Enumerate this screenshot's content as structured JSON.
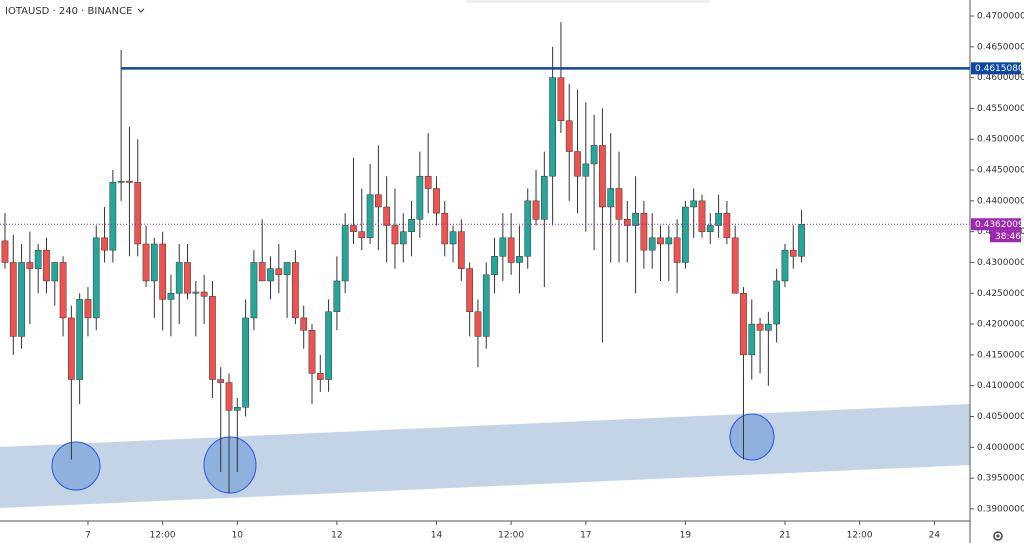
{
  "chart_data": {
    "type": "candlestick",
    "title": "IOTAUSD · 240 · BINANCE",
    "up_color": "#26a69a",
    "down_color": "#ef5350",
    "ylim": [
      0.3882,
      0.4726
    ],
    "yticks": [
      {
        "value": 0.39,
        "label": "0.39000000"
      },
      {
        "value": 0.395,
        "label": "0.39500000"
      },
      {
        "value": 0.4,
        "label": "0.40000000"
      },
      {
        "value": 0.405,
        "label": "0.40500000"
      },
      {
        "value": 0.41,
        "label": "0.41000000"
      },
      {
        "value": 0.415,
        "label": "0.41500000"
      },
      {
        "value": 0.42,
        "label": "0.42000000"
      },
      {
        "value": 0.425,
        "label": "0.42500000"
      },
      {
        "value": 0.43,
        "label": "0.43000000"
      },
      {
        "value": 0.435,
        "label": "0.43500000"
      },
      {
        "value": 0.44,
        "label": "0.44000000"
      },
      {
        "value": 0.445,
        "label": "0.44500000"
      },
      {
        "value": 0.45,
        "label": "0.45000000"
      },
      {
        "value": 0.455,
        "label": "0.45500000"
      },
      {
        "value": 0.46,
        "label": "0.46000000"
      },
      {
        "value": 0.465,
        "label": "0.46500000"
      },
      {
        "value": 0.47,
        "label": "0.47000000"
      }
    ],
    "xlim": [
      -0.6,
      116.3
    ],
    "xticks": [
      {
        "value": 10,
        "label": "7"
      },
      {
        "value": 19,
        "label": "12:00"
      },
      {
        "value": 28,
        "label": "10"
      },
      {
        "value": 40,
        "label": "12"
      },
      {
        "value": 52,
        "label": "14"
      },
      {
        "value": 61,
        "label": "12:00"
      },
      {
        "value": 70,
        "label": "17"
      },
      {
        "value": 82,
        "label": "19"
      },
      {
        "value": 94,
        "label": "21"
      },
      {
        "value": 103,
        "label": "12:00"
      },
      {
        "value": 112,
        "label": "24"
      }
    ],
    "hlines": [
      {
        "value": 0.46150808,
        "color": "#0d47a1"
      },
      {
        "value": 0.43620093,
        "color": "#9c27b0",
        "countdown": "38:46"
      }
    ],
    "candles": [
      [
        0.4335,
        0.438,
        0.429,
        0.43
      ],
      [
        0.43,
        0.4345,
        0.415,
        0.418
      ],
      [
        0.418,
        0.433,
        0.416,
        0.43
      ],
      [
        0.43,
        0.435,
        0.42,
        0.429
      ],
      [
        0.429,
        0.433,
        0.425,
        0.432
      ],
      [
        0.432,
        0.434,
        0.425,
        0.427
      ],
      [
        0.427,
        0.43,
        0.423,
        0.43
      ],
      [
        0.43,
        0.431,
        0.418,
        0.421
      ],
      [
        0.421,
        0.423,
        0.398,
        0.411
      ],
      [
        0.411,
        0.425,
        0.407,
        0.424
      ],
      [
        0.424,
        0.426,
        0.418,
        0.421
      ],
      [
        0.421,
        0.436,
        0.419,
        0.434
      ],
      [
        0.434,
        0.439,
        0.43,
        0.432
      ],
      [
        0.432,
        0.445,
        0.43,
        0.443
      ],
      [
        0.443,
        0.4645,
        0.44,
        0.4432
      ],
      [
        0.4432,
        0.452,
        0.431,
        0.443
      ],
      [
        0.443,
        0.45,
        0.431,
        0.433
      ],
      [
        0.433,
        0.436,
        0.426,
        0.427
      ],
      [
        0.427,
        0.434,
        0.421,
        0.433
      ],
      [
        0.433,
        0.435,
        0.419,
        0.424
      ],
      [
        0.424,
        0.428,
        0.418,
        0.425
      ],
      [
        0.425,
        0.433,
        0.42,
        0.43
      ],
      [
        0.43,
        0.433,
        0.424,
        0.425
      ],
      [
        0.425,
        0.427,
        0.418,
        0.4252
      ],
      [
        0.4252,
        0.428,
        0.42,
        0.4245
      ],
      [
        0.4245,
        0.427,
        0.408,
        0.411
      ],
      [
        0.411,
        0.413,
        0.396,
        0.4105
      ],
      [
        0.4105,
        0.412,
        0.3925,
        0.406
      ],
      [
        0.406,
        0.408,
        0.396,
        0.4065
      ],
      [
        0.4065,
        0.424,
        0.405,
        0.421
      ],
      [
        0.421,
        0.432,
        0.419,
        0.43
      ],
      [
        0.43,
        0.437,
        0.427,
        0.427
      ],
      [
        0.427,
        0.431,
        0.424,
        0.429
      ],
      [
        0.429,
        0.433,
        0.425,
        0.428
      ],
      [
        0.428,
        0.43,
        0.421,
        0.43
      ],
      [
        0.43,
        0.432,
        0.42,
        0.421
      ],
      [
        0.421,
        0.423,
        0.416,
        0.419
      ],
      [
        0.419,
        0.42,
        0.407,
        0.412
      ],
      [
        0.412,
        0.415,
        0.409,
        0.411
      ],
      [
        0.411,
        0.424,
        0.409,
        0.422
      ],
      [
        0.422,
        0.431,
        0.419,
        0.427
      ],
      [
        0.427,
        0.438,
        0.425,
        0.436
      ],
      [
        0.436,
        0.447,
        0.433,
        0.435
      ],
      [
        0.435,
        0.442,
        0.432,
        0.434
      ],
      [
        0.434,
        0.446,
        0.433,
        0.441
      ],
      [
        0.441,
        0.449,
        0.432,
        0.439
      ],
      [
        0.439,
        0.444,
        0.43,
        0.436
      ],
      [
        0.436,
        0.442,
        0.429,
        0.433
      ],
      [
        0.433,
        0.438,
        0.43,
        0.435
      ],
      [
        0.435,
        0.44,
        0.431,
        0.437
      ],
      [
        0.437,
        0.448,
        0.434,
        0.444
      ],
      [
        0.444,
        0.451,
        0.438,
        0.442
      ],
      [
        0.442,
        0.444,
        0.436,
        0.438
      ],
      [
        0.438,
        0.44,
        0.431,
        0.433
      ],
      [
        0.433,
        0.436,
        0.43,
        0.435
      ],
      [
        0.435,
        0.437,
        0.427,
        0.429
      ],
      [
        0.429,
        0.43,
        0.418,
        0.422
      ],
      [
        0.422,
        0.424,
        0.413,
        0.418
      ],
      [
        0.418,
        0.43,
        0.416,
        0.428
      ],
      [
        0.428,
        0.434,
        0.425,
        0.431
      ],
      [
        0.431,
        0.438,
        0.427,
        0.434
      ],
      [
        0.434,
        0.438,
        0.428,
        0.43
      ],
      [
        0.43,
        0.436,
        0.425,
        0.431
      ],
      [
        0.431,
        0.442,
        0.429,
        0.44
      ],
      [
        0.44,
        0.445,
        0.436,
        0.437
      ],
      [
        0.437,
        0.448,
        0.426,
        0.444
      ],
      [
        0.444,
        0.465,
        0.436,
        0.46
      ],
      [
        0.46,
        0.469,
        0.451,
        0.453
      ],
      [
        0.453,
        0.459,
        0.44,
        0.448
      ],
      [
        0.448,
        0.458,
        0.438,
        0.444
      ],
      [
        0.444,
        0.456,
        0.435,
        0.446
      ],
      [
        0.446,
        0.454,
        0.432,
        0.449
      ],
      [
        0.449,
        0.455,
        0.417,
        0.439
      ],
      [
        0.439,
        0.451,
        0.43,
        0.442
      ],
      [
        0.442,
        0.448,
        0.43,
        0.437
      ],
      [
        0.437,
        0.44,
        0.43,
        0.436
      ],
      [
        0.436,
        0.444,
        0.425,
        0.438
      ],
      [
        0.438,
        0.44,
        0.429,
        0.432
      ],
      [
        0.432,
        0.438,
        0.429,
        0.434
      ],
      [
        0.434,
        0.436,
        0.427,
        0.433
      ],
      [
        0.433,
        0.436,
        0.427,
        0.434
      ],
      [
        0.434,
        0.437,
        0.425,
        0.43
      ],
      [
        0.43,
        0.44,
        0.429,
        0.439
      ],
      [
        0.439,
        0.442,
        0.434,
        0.44
      ],
      [
        0.44,
        0.441,
        0.434,
        0.435
      ],
      [
        0.435,
        0.438,
        0.433,
        0.436
      ],
      [
        0.436,
        0.441,
        0.434,
        0.438
      ],
      [
        0.438,
        0.44,
        0.433,
        0.434
      ],
      [
        0.434,
        0.436,
        0.425,
        0.425
      ],
      [
        0.425,
        0.426,
        0.398,
        0.415
      ],
      [
        0.415,
        0.424,
        0.411,
        0.42
      ],
      [
        0.42,
        0.421,
        0.412,
        0.419
      ],
      [
        0.419,
        0.422,
        0.41,
        0.42
      ],
      [
        0.42,
        0.429,
        0.417,
        0.427
      ],
      [
        0.427,
        0.433,
        0.426,
        0.432
      ],
      [
        0.432,
        0.436,
        0.429,
        0.431
      ],
      [
        0.431,
        0.4385,
        0.43,
        0.4362
      ]
    ]
  }
}
